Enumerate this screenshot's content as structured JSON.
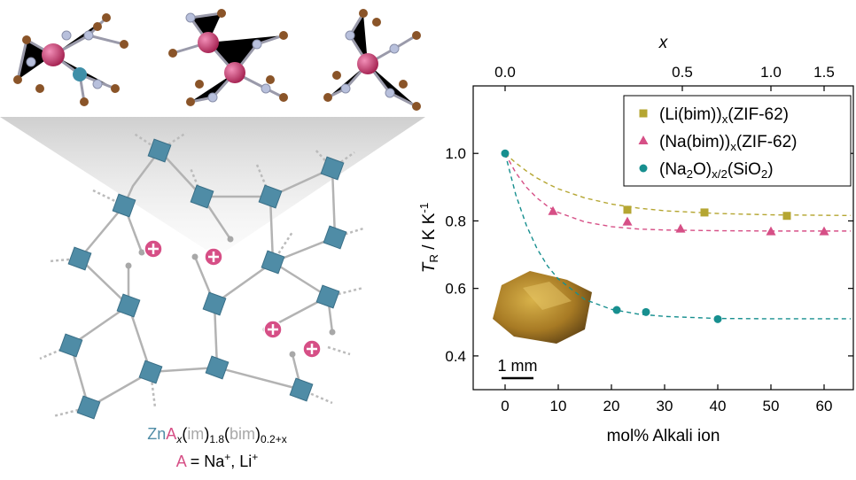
{
  "formula": {
    "line1": [
      {
        "t": "Zn"
      },
      {
        "t": "A"
      },
      {
        "t": "x",
        "sub": true
      },
      {
        "t": "("
      },
      {
        "t": "im"
      },
      {
        "t": ")"
      },
      {
        "t": "1.8",
        "sub": true
      },
      {
        "t": "("
      },
      {
        "t": "bim"
      },
      {
        "t": ")"
      },
      {
        "t": "0.2+x",
        "sub": true
      }
    ],
    "line2": [
      {
        "t": "A"
      },
      {
        "t": " = Na"
      },
      {
        "t": "+",
        "sup": true
      },
      {
        "t": ", Li"
      },
      {
        "t": "+",
        "sup": true
      }
    ]
  },
  "chart_data": {
    "type": "scatter",
    "xlabel": "mol% Alkali ion",
    "ylabel": [
      {
        "t": "T",
        "italic": true
      },
      {
        "t": "R",
        "sub": true
      },
      {
        "t": " / K K"
      },
      {
        "t": "-1",
        "sup": true
      }
    ],
    "x2label": "x",
    "xlim": [
      -6,
      65.5
    ],
    "ylim": [
      0.3,
      1.2
    ],
    "xticks": [
      0,
      10,
      20,
      30,
      40,
      50,
      60
    ],
    "yticks": [
      0.4,
      0.6,
      0.8,
      {
        "value": 1,
        "label": "1.0"
      }
    ],
    "x2ticks": [
      {
        "value": 0,
        "label": "0.0"
      },
      0.5,
      {
        "value": 1,
        "label": "1.0"
      },
      1.5
    ],
    "legend": "upper right",
    "inset_label": "1 mm",
    "series": [
      {
        "name": [
          {
            "t": "(Li(bim))"
          },
          {
            "t": "x",
            "sub": true
          },
          {
            "t": "(ZIF-62)"
          }
        ],
        "color": "#b5a632",
        "marker": "square",
        "x": [
          23,
          37.5,
          53
        ],
        "values": [
          0.833,
          0.825,
          0.815
        ],
        "fit": {
          "x": [
            0,
            2,
            4,
            6,
            8,
            10,
            15,
            20,
            25,
            30,
            40,
            50,
            65
          ],
          "y": [
            1.0,
            0.972,
            0.948,
            0.927,
            0.91,
            0.895,
            0.868,
            0.85,
            0.838,
            0.83,
            0.822,
            0.818,
            0.816
          ]
        }
      },
      {
        "name": [
          {
            "t": "(Na(bim))"
          },
          {
            "t": "x",
            "sub": true
          },
          {
            "t": "(ZIF-62)"
          }
        ],
        "color": "#d64f86",
        "marker": "triangle",
        "x": [
          9,
          23,
          33,
          50,
          60
        ],
        "values": [
          0.828,
          0.797,
          0.776,
          0.768,
          0.768
        ],
        "fit": {
          "x": [
            0,
            2,
            4,
            6,
            8,
            10,
            15,
            20,
            25,
            30,
            40,
            50,
            65
          ],
          "y": [
            1.0,
            0.943,
            0.9,
            0.868,
            0.843,
            0.825,
            0.797,
            0.783,
            0.776,
            0.773,
            0.771,
            0.77,
            0.77
          ]
        }
      },
      {
        "name": [
          {
            "t": "(Na"
          },
          {
            "t": "2",
            "sub": true
          },
          {
            "t": "O)"
          },
          {
            "t": "x/2",
            "sub": true
          },
          {
            "t": "(SiO"
          },
          {
            "t": "2",
            "sub": true
          },
          {
            "t": ")"
          }
        ],
        "color": "#178f8f",
        "marker": "circle",
        "x": [
          0,
          21,
          26.5,
          40
        ],
        "values": [
          1.0,
          0.536,
          0.53,
          0.509
        ],
        "fit": {
          "x": [
            0,
            2,
            4,
            6,
            8,
            10,
            15,
            20,
            25,
            30,
            40,
            50,
            65
          ],
          "y": [
            1.0,
            0.878,
            0.787,
            0.718,
            0.666,
            0.628,
            0.567,
            0.538,
            0.524,
            0.517,
            0.511,
            0.51,
            0.51
          ]
        }
      }
    ]
  }
}
